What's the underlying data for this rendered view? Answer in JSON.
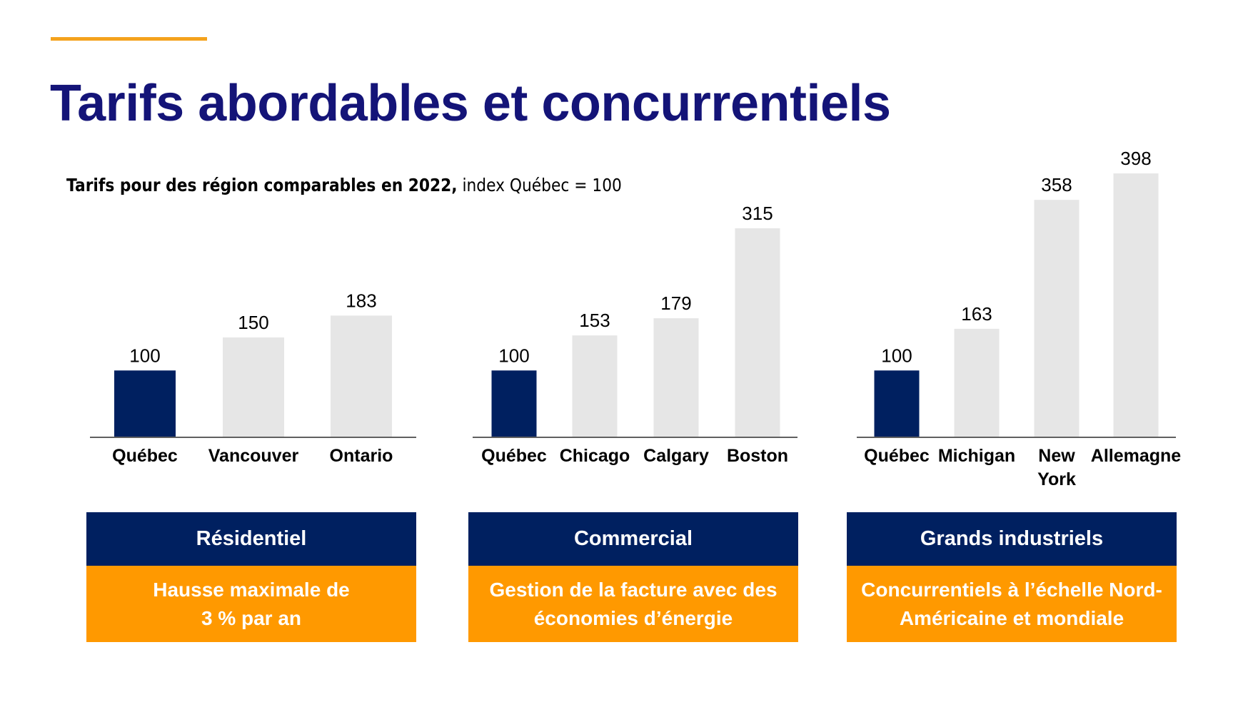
{
  "title": "Tarifs abordables et concurrentiels",
  "subtitle": {
    "bold": "Tarifs pour des région comparables en 2022,",
    "regular": " index Québec = 100"
  },
  "colors": {
    "highlight": "#002060",
    "other": "#e6e6e6",
    "accent": "#ff9900",
    "title": "#141478"
  },
  "chart_data": [
    {
      "type": "bar",
      "categories": [
        "Québec",
        "Vancouver",
        "Ontario"
      ],
      "values": [
        100,
        150,
        183
      ],
      "highlight": "Québec"
    },
    {
      "type": "bar",
      "categories": [
        "Québec",
        "Chicago",
        "Calgary",
        "Boston"
      ],
      "values": [
        100,
        153,
        179,
        315
      ],
      "highlight": "Québec"
    },
    {
      "type": "bar",
      "categories": [
        "Québec",
        "Michigan",
        "New York",
        "Allemagne"
      ],
      "values": [
        100,
        163,
        358,
        398
      ],
      "highlight": "Québec"
    }
  ],
  "boxes": [
    {
      "heading": "Résidentiel",
      "text": "Hausse maximale de 3 % par an"
    },
    {
      "heading": "Commercial",
      "text": "Gestion de la facture avec des économies d’énergie"
    },
    {
      "heading": "Grands industriels",
      "text": "Concurrentiels à l’échelle Nord-Américaine et mondiale"
    }
  ]
}
